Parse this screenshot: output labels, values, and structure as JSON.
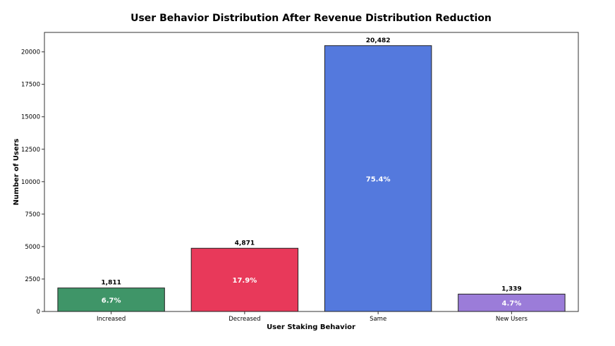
{
  "chart_data": {
    "type": "bar",
    "title": "User Behavior Distribution After Revenue Distribution Reduction",
    "xlabel": "User Staking Behavior",
    "ylabel": "Number of Users",
    "categories": [
      "Increased",
      "Decreased",
      "Same",
      "New Users"
    ],
    "values": [
      1811,
      4871,
      20482,
      1339
    ],
    "value_labels": [
      "1,811",
      "4,871",
      "20,482",
      "1,339"
    ],
    "percent_labels": [
      "6.7%",
      "17.9%",
      "75.4%",
      "4.7%"
    ],
    "colors": [
      "#3f9568",
      "#e8395a",
      "#5479dd",
      "#9b7cd9"
    ],
    "yticks": [
      0,
      2500,
      5000,
      7500,
      10000,
      12500,
      15000,
      17500,
      20000
    ],
    "ylim": [
      0,
      21500
    ],
    "grid": false,
    "legend": "none"
  }
}
